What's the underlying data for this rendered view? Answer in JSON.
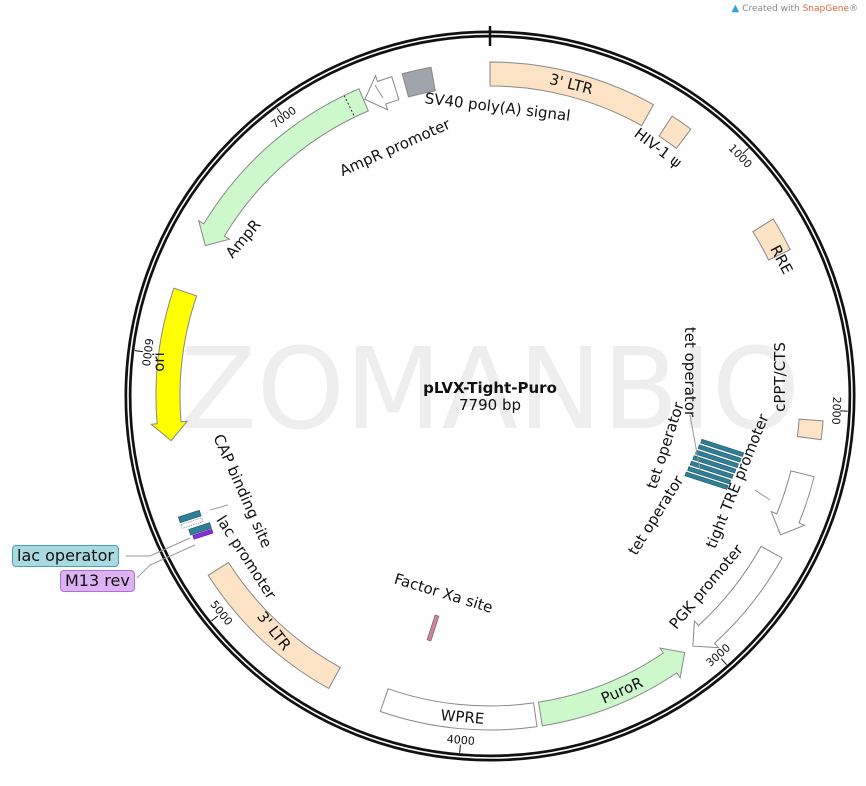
{
  "credit": {
    "prefix": "Created with ",
    "brand": "SnapGene",
    "suffix": "®",
    "icon": "snapgene-logo-icon"
  },
  "watermark": "ZOMANBIO",
  "plasmid": {
    "name": "pLVX-Tight-Puro",
    "length_label": "7790 bp",
    "length": 7790
  },
  "ticks": [
    "1000",
    "2000",
    "3000",
    "4000",
    "5000",
    "6000",
    "7000"
  ],
  "features": [
    {
      "name": "3' LTR",
      "start": 0,
      "end": 634,
      "dir": 0,
      "color": "#fde3c6"
    },
    {
      "name": "HIV-1 ψ",
      "start": 715,
      "end": 800,
      "dir": 0,
      "color": "#fde3c6"
    },
    {
      "name": "RRE",
      "start": 1255,
      "end": 1385,
      "dir": 0,
      "color": "#fde3c6"
    },
    {
      "name": "cPPT/CTS",
      "start": 2040,
      "end": 2110,
      "dir": 0,
      "color": "#fde3c6"
    },
    {
      "name": "tight TRE promoter",
      "start": 2250,
      "end": 2500,
      "dir": 1,
      "color": "#ffffff"
    },
    {
      "name": "PGK promoter",
      "start": 2575,
      "end": 3050,
      "dir": 1,
      "color": "#ffffff"
    },
    {
      "name": "PuroR",
      "start": 3090,
      "end": 3700,
      "dir": -1,
      "color": "#ccf8cc"
    },
    {
      "name": "WPRE",
      "start": 3720,
      "end": 4310,
      "dir": 0,
      "color": "#ffffff"
    },
    {
      "name": "3' LTR",
      "start": 4520,
      "end": 5140,
      "dir": 0,
      "color": "#fde3c6"
    },
    {
      "name": "ori",
      "start": 5670,
      "end": 6250,
      "dir": -1,
      "color": "#ffff00"
    },
    {
      "name": "AmpR",
      "start": 6445,
      "end": 7290,
      "dir": -1,
      "color": "#ccf8cc"
    },
    {
      "name": "AmpR promoter",
      "start": 7295,
      "end": 7420,
      "dir": -1,
      "color": "#ffffff"
    },
    {
      "name": "SV40 poly(A) signal",
      "start": 7460,
      "end": 7570,
      "dir": 0,
      "color": "#a0a4ab"
    }
  ],
  "labels": {
    "ltr_top": "3' LTR",
    "sv40": "SV40 poly(A) signal",
    "ampr_promoter": "AmpR promoter",
    "hiv": "HIV-1 ψ",
    "ampr": "AmpR",
    "ori": "ori",
    "rre": "RRE",
    "cppt": "cPPT/CTS",
    "tre": "tight TRE promoter",
    "tet1": "tet operator",
    "tet2": "tet operator",
    "tet3": "tet operator",
    "pgk": "PGK promoter",
    "puror": "PuroR",
    "wpre": "WPRE",
    "factor_xa": "Factor Xa site",
    "ltr_bottom": "3' LTR",
    "cap": "CAP binding site",
    "lac_promoter": "lac promoter",
    "lac_operator": "lac operator",
    "m13": "M13 rev"
  },
  "colors": {
    "tet_operator": "#2f7f96",
    "lac_operator": "#a9d9e1",
    "m13_rev": "#dcb2f2",
    "factor_xa": "#c9879a",
    "backbone": "#111111"
  }
}
